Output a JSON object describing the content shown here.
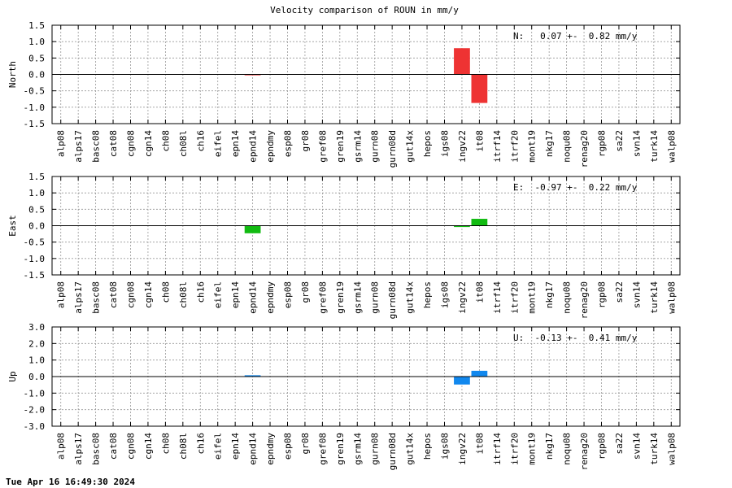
{
  "title": "Velocity comparison of ROUN in mm/y",
  "timestamp": "Tue Apr 16 16:49:30 2024",
  "chart_data": [
    {
      "type": "bar",
      "ylabel": "North",
      "ylim": [
        -1.5,
        1.5
      ],
      "yticks": [
        "1.5",
        "1.0",
        "0.5",
        "0.0",
        "-0.5",
        "-1.0",
        "-1.5"
      ],
      "ytick_values": [
        1.5,
        1.0,
        0.5,
        0.0,
        -0.5,
        -1.0,
        -1.5
      ],
      "annotation": "N:   0.07 +-  0.82 mm/y",
      "color": "#ee3333",
      "grid": true,
      "categories": [
        "alp08",
        "alps17",
        "basc08",
        "cat08",
        "cgn08",
        "cgn14",
        "ch08",
        "ch08l",
        "ch16",
        "eifel",
        "epn14",
        "epnd14",
        "epndmy",
        "esp08",
        "gr08",
        "gref08",
        "gren19",
        "gsrm14",
        "gurn08",
        "gurn08d",
        "gut14x",
        "hepos",
        "igs08",
        "ingv22",
        "it08",
        "itrf14",
        "itrf20",
        "mont19",
        "nkg17",
        "noqu08",
        "renag20",
        "rgp08",
        "sa22",
        "svn14",
        "turk14",
        "walp08"
      ],
      "values": [
        0,
        0,
        0,
        0,
        0,
        0,
        0,
        0,
        0,
        0,
        0,
        0.01,
        0,
        0,
        0,
        0,
        0,
        0,
        0,
        0,
        0,
        0,
        0,
        0.8,
        -0.87,
        0,
        0,
        0,
        0,
        0,
        0,
        0,
        0,
        0,
        0,
        0
      ]
    },
    {
      "type": "bar",
      "ylabel": "East",
      "ylim": [
        -1.5,
        1.5
      ],
      "yticks": [
        "1.5",
        "1.0",
        "0.5",
        "0.0",
        "-0.5",
        "-1.0",
        "-1.5"
      ],
      "ytick_values": [
        1.5,
        1.0,
        0.5,
        0.0,
        -0.5,
        -1.0,
        -1.5
      ],
      "annotation": "E:  -0.97 +-  0.22 mm/y",
      "color": "#11bb11",
      "grid": true,
      "categories": [
        "alp08",
        "alps17",
        "basc08",
        "cat08",
        "cgn08",
        "cgn14",
        "ch08",
        "ch08l",
        "ch16",
        "eifel",
        "epn14",
        "epnd14",
        "epndmy",
        "esp08",
        "gr08",
        "gref08",
        "gren19",
        "gsrm14",
        "gurn08",
        "gurn08d",
        "gut14x",
        "hepos",
        "igs08",
        "ingv22",
        "it08",
        "itrf14",
        "itrf20",
        "mont19",
        "nkg17",
        "noqu08",
        "renag20",
        "rgp08",
        "sa22",
        "svn14",
        "turk14",
        "walp08"
      ],
      "values": [
        0,
        0,
        0,
        0,
        0,
        0,
        0,
        0,
        0,
        0,
        0,
        -0.23,
        0,
        0,
        0,
        0,
        0,
        0,
        0,
        0,
        0,
        0,
        0,
        -0.04,
        0.21,
        0,
        0,
        0,
        0,
        0,
        0,
        0,
        0,
        0,
        0,
        0
      ]
    },
    {
      "type": "bar",
      "ylabel": "Up",
      "ylim": [
        -3.0,
        3.0
      ],
      "yticks": [
        "3.0",
        "2.0",
        "1.0",
        "0.0",
        "-1.0",
        "-2.0",
        "-3.0"
      ],
      "ytick_values": [
        3.0,
        2.0,
        1.0,
        0.0,
        -1.0,
        -2.0,
        -3.0
      ],
      "annotation": "U:  -0.13 +-  0.41 mm/y",
      "color": "#1188ee",
      "grid": true,
      "categories": [
        "alp08",
        "alps17",
        "basc08",
        "cat08",
        "cgn08",
        "cgn14",
        "ch08",
        "ch08l",
        "ch16",
        "eifel",
        "epn14",
        "epnd14",
        "epndmy",
        "esp08",
        "gr08",
        "gref08",
        "gren19",
        "gsrm14",
        "gurn08",
        "gurn08d",
        "gut14x",
        "hepos",
        "igs08",
        "ingv22",
        "it08",
        "itrf14",
        "itrf20",
        "mont19",
        "nkg17",
        "noqu08",
        "renag20",
        "rgp08",
        "sa22",
        "svn14",
        "turk14",
        "walp08"
      ],
      "values": [
        0,
        0,
        0,
        0,
        0,
        0,
        0,
        0,
        0,
        0,
        0,
        0.08,
        0,
        0,
        0,
        0,
        0,
        0,
        0,
        0,
        0,
        0,
        0,
        -0.48,
        0.35,
        0,
        0,
        0,
        0,
        0,
        0,
        0,
        0,
        0,
        0,
        0
      ]
    }
  ]
}
